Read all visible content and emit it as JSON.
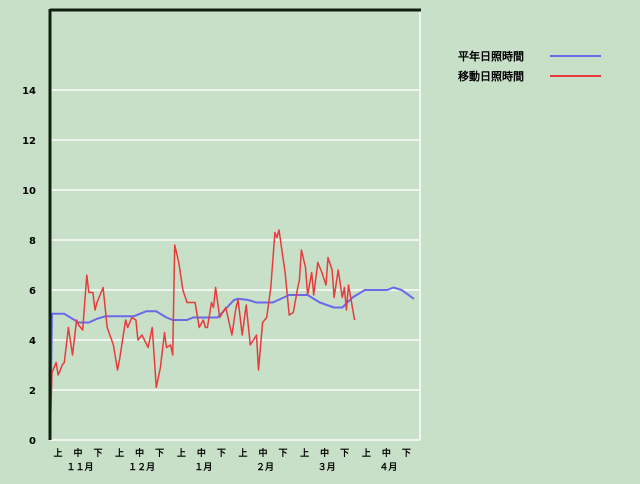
{
  "chart_data": {
    "type": "line",
    "title": "",
    "xlabel": "",
    "ylabel": "",
    "ylim": [
      0,
      17.2
    ],
    "yticks": [
      0,
      2,
      4,
      6,
      8,
      10,
      12,
      14
    ],
    "grid": true,
    "legend_position": "top-right",
    "x_axis": {
      "dekad_labels": [
        "上",
        "中",
        "下"
      ],
      "months": [
        {
          "label": "１１月",
          "month": 11
        },
        {
          "label": "１２月",
          "month": 12
        },
        {
          "label": "１月",
          "month": 1
        },
        {
          "label": "２月",
          "month": 2
        },
        {
          "label": "３月",
          "month": 3
        },
        {
          "label": "４月",
          "month": 4
        }
      ]
    },
    "series": [
      {
        "name": "平年日照時間",
        "color": "#6a6ae8",
        "points": [
          [
            "11-01",
            0
          ],
          [
            "11-02",
            5.05
          ],
          [
            "11-08",
            5.05
          ],
          [
            "11-13",
            4.8
          ],
          [
            "11-15",
            4.7
          ],
          [
            "11-20",
            4.7
          ],
          [
            "11-24",
            4.85
          ],
          [
            "11-28",
            4.95
          ],
          [
            "12-12",
            4.95
          ],
          [
            "12-18",
            5.15
          ],
          [
            "12-23",
            5.15
          ],
          [
            "12-28",
            4.9
          ],
          [
            "12-31",
            4.8
          ],
          [
            "01-07",
            4.8
          ],
          [
            "01-10",
            4.9
          ],
          [
            "01-22",
            4.9
          ],
          [
            "01-30",
            5.6
          ],
          [
            "02-01",
            5.65
          ],
          [
            "02-06",
            5.6
          ],
          [
            "02-10",
            5.5
          ],
          [
            "02-18",
            5.5
          ],
          [
            "02-26",
            5.8
          ],
          [
            "03-07",
            5.8
          ],
          [
            "03-13",
            5.5
          ],
          [
            "03-20",
            5.3
          ],
          [
            "03-24",
            5.3
          ],
          [
            "03-29",
            5.7
          ],
          [
            "04-04",
            6.0
          ],
          [
            "04-15",
            6.0
          ],
          [
            "04-18",
            6.1
          ],
          [
            "04-22",
            6.0
          ],
          [
            "04-28",
            5.65
          ]
        ]
      },
      {
        "name": "移動日照時間",
        "color": "#e83c3c",
        "points": [
          [
            "11-01",
            0
          ],
          [
            "11-02",
            2.7
          ],
          [
            "11-04",
            3.1
          ],
          [
            "11-05",
            2.6
          ],
          [
            "11-07",
            3.0
          ],
          [
            "11-08",
            3.1
          ],
          [
            "11-10",
            4.5
          ],
          [
            "11-12",
            3.4
          ],
          [
            "11-14",
            4.8
          ],
          [
            "11-15",
            4.6
          ],
          [
            "11-17",
            4.4
          ],
          [
            "11-19",
            6.6
          ],
          [
            "11-20",
            5.9
          ],
          [
            "11-22",
            5.9
          ],
          [
            "11-23",
            5.2
          ],
          [
            "11-24",
            5.5
          ],
          [
            "11-27",
            6.1
          ],
          [
            "11-29",
            4.5
          ],
          [
            "12-02",
            3.8
          ],
          [
            "12-04",
            2.8
          ],
          [
            "12-05",
            3.2
          ],
          [
            "12-08",
            4.8
          ],
          [
            "12-09",
            4.5
          ],
          [
            "12-11",
            4.9
          ],
          [
            "12-13",
            4.8
          ],
          [
            "12-14",
            4.0
          ],
          [
            "12-16",
            4.2
          ],
          [
            "12-19",
            3.7
          ],
          [
            "12-21",
            4.5
          ],
          [
            "12-23",
            2.1
          ],
          [
            "12-25",
            2.9
          ],
          [
            "12-27",
            4.3
          ],
          [
            "12-28",
            3.7
          ],
          [
            "12-30",
            3.8
          ],
          [
            "12-31",
            3.4
          ],
          [
            "01-01",
            7.8
          ],
          [
            "01-03",
            7.1
          ],
          [
            "01-05",
            6.0
          ],
          [
            "01-07",
            5.5
          ],
          [
            "01-10",
            5.5
          ],
          [
            "01-11",
            5.5
          ],
          [
            "01-13",
            4.5
          ],
          [
            "01-15",
            4.8
          ],
          [
            "01-16",
            4.5
          ],
          [
            "01-17",
            4.5
          ],
          [
            "01-19",
            5.5
          ],
          [
            "01-20",
            5.3
          ],
          [
            "01-21",
            6.1
          ],
          [
            "01-23",
            4.9
          ],
          [
            "01-26",
            5.3
          ],
          [
            "01-29",
            4.2
          ],
          [
            "01-31",
            5.3
          ],
          [
            "02-01",
            5.6
          ],
          [
            "02-03",
            4.2
          ],
          [
            "02-05",
            5.4
          ],
          [
            "02-07",
            3.8
          ],
          [
            "02-10",
            4.2
          ],
          [
            "02-11",
            2.8
          ],
          [
            "02-13",
            4.7
          ],
          [
            "02-15",
            4.9
          ],
          [
            "02-17",
            6.1
          ],
          [
            "02-19",
            8.3
          ],
          [
            "02-20",
            8.1
          ],
          [
            "02-21",
            8.4
          ],
          [
            "02-24",
            6.7
          ],
          [
            "02-26",
            5.0
          ],
          [
            "02-28",
            5.1
          ],
          [
            "03-02",
            6.0
          ],
          [
            "03-03",
            6.4
          ],
          [
            "03-04",
            7.6
          ],
          [
            "03-06",
            6.9
          ],
          [
            "03-07",
            5.8
          ],
          [
            "03-09",
            6.7
          ],
          [
            "03-10",
            5.8
          ],
          [
            "03-12",
            7.1
          ],
          [
            "03-14",
            6.7
          ],
          [
            "03-16",
            6.2
          ],
          [
            "03-17",
            7.3
          ],
          [
            "03-19",
            6.8
          ],
          [
            "03-20",
            5.7
          ],
          [
            "03-22",
            6.8
          ],
          [
            "03-24",
            5.7
          ],
          [
            "03-25",
            6.1
          ],
          [
            "03-26",
            5.2
          ],
          [
            "03-27",
            6.2
          ],
          [
            "03-30",
            4.8
          ]
        ]
      }
    ]
  }
}
